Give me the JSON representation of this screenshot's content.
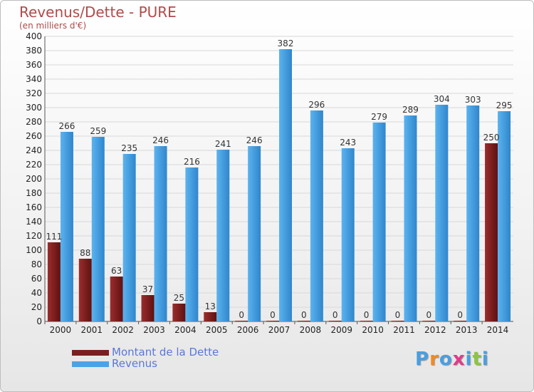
{
  "title": "Revenus/Dette - PURE",
  "subtitle": "(en milliers d'€)",
  "logo": {
    "text": "Proxiti",
    "colors": [
      "#4a9ee0",
      "#f08a24",
      "#4a9ee0",
      "#e03a8a",
      "#4a9ee0",
      "#8cc63f",
      "#4a9ee0"
    ]
  },
  "legend": [
    {
      "label": "Montant de la Dette",
      "color": "#7a1f1f"
    },
    {
      "label": "Revenus",
      "color": "#4aa3e6"
    }
  ],
  "chart_data": {
    "type": "bar",
    "categories": [
      "2000",
      "2001",
      "2002",
      "2003",
      "2004",
      "2005",
      "2006",
      "2007",
      "2008",
      "2009",
      "2010",
      "2011",
      "2012",
      "2013",
      "2014"
    ],
    "series": [
      {
        "name": "Montant de la Dette",
        "color": "#7a1f1f",
        "values": [
          111,
          88,
          63,
          37,
          25,
          13,
          0,
          0,
          0,
          0,
          0,
          0,
          0,
          0,
          250
        ]
      },
      {
        "name": "Revenus",
        "color": "#4aa3e6",
        "values": [
          266,
          259,
          235,
          246,
          216,
          241,
          246,
          382,
          296,
          243,
          279,
          289,
          304,
          303,
          295
        ]
      }
    ],
    "yticks": [
      0,
      20,
      40,
      60,
      80,
      100,
      120,
      140,
      160,
      180,
      200,
      220,
      240,
      260,
      280,
      300,
      320,
      340,
      360,
      380,
      400
    ],
    "ylim": [
      0,
      400
    ],
    "grid": true,
    "legend_position": "bottom-left"
  }
}
